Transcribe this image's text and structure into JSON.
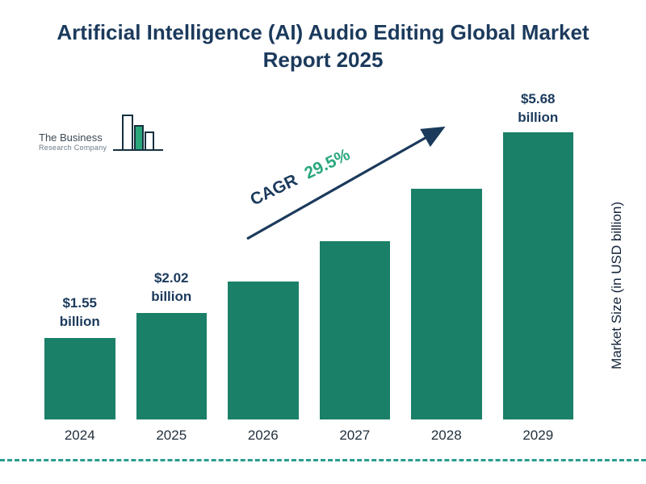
{
  "page": {
    "title": "Artificial Intelligence (AI) Audio Editing Global Market Report 2025"
  },
  "logo": {
    "line1": "The Business",
    "line2": "Research Company"
  },
  "annotation": {
    "cagr_label": "CAGR",
    "cagr_value": "29.5%"
  },
  "colors": {
    "bar": "#1a8068",
    "title": "#1b3a5c",
    "arrow": "#1b3a5c",
    "cagr_value": "#2aa87c",
    "dashed_line": "#2a9d8f"
  },
  "chart_data": {
    "type": "bar",
    "title": "Artificial Intelligence (AI) Audio Editing Global Market Report 2025",
    "categories": [
      "2024",
      "2025",
      "2026",
      "2027",
      "2028",
      "2029"
    ],
    "values": [
      1.55,
      2.02,
      2.62,
      3.39,
      4.39,
      5.68
    ],
    "bar_labels": [
      "$1.55 billion",
      "$2.02 billion",
      null,
      null,
      null,
      "$5.68 billion"
    ],
    "xlabel": "",
    "ylabel": "Market Size (in USD billion)",
    "ylim": [
      0,
      6
    ],
    "grid": false,
    "legend": false,
    "annotation": "CAGR 29.5%"
  }
}
